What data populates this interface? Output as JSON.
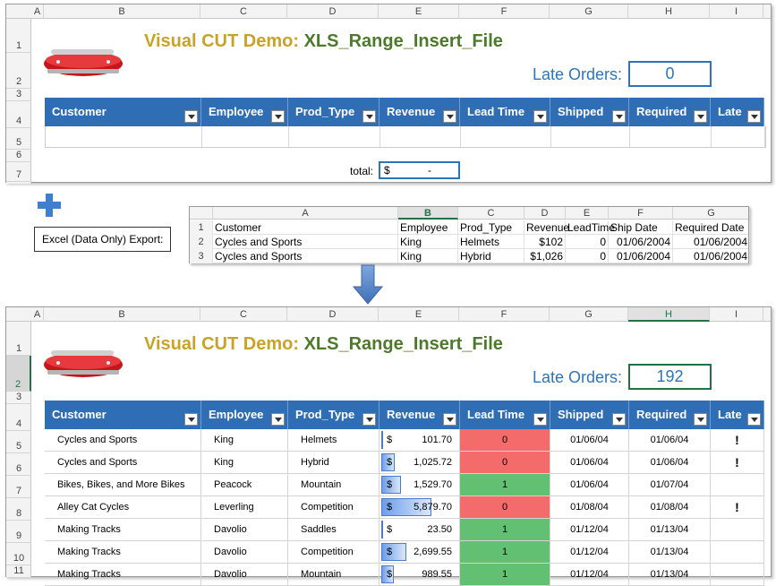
{
  "top_sheet": {
    "columns": [
      "A",
      "B",
      "C",
      "D",
      "E",
      "F",
      "G",
      "H",
      "I"
    ],
    "rows": [
      "1",
      "2",
      "3",
      "4",
      "5",
      "6",
      "7"
    ],
    "title_part1": "Visual CUT Demo:",
    "title_part2": "XLS_Range_Insert_File",
    "late_orders_label": "Late Orders:",
    "late_orders_value": "0",
    "headers": [
      "Customer",
      "Employee",
      "Prod_Type",
      "Revenue",
      "Lead Time",
      "Shipped",
      "Required",
      "Late"
    ],
    "total_label": "total:",
    "total_currency": "$",
    "total_value": "-"
  },
  "export_label": "Excel (Data Only) Export:",
  "export_sheet": {
    "columns": [
      "A",
      "B",
      "C",
      "D",
      "E",
      "F",
      "G"
    ],
    "header_row": {
      "n": "1",
      "cells": [
        "Customer",
        "Employee",
        "Prod_Type",
        "Revenue",
        "LeadTime",
        "Ship Date",
        "Required Date"
      ]
    },
    "rows": [
      {
        "n": "2",
        "cells": [
          "Cycles and Sports",
          "King",
          "Helmets",
          "$102",
          "0",
          "01/06/2004",
          "01/06/2004"
        ]
      },
      {
        "n": "3",
        "cells": [
          "Cycles and Sports",
          "King",
          "Hybrid",
          "$1,026",
          "0",
          "01/06/2004",
          "01/06/2004"
        ]
      }
    ]
  },
  "bottom_sheet": {
    "columns": [
      "A",
      "B",
      "C",
      "D",
      "E",
      "F",
      "G",
      "H",
      "I"
    ],
    "rows": [
      "1",
      "2",
      "3",
      "4",
      "5",
      "6",
      "7",
      "8",
      "9",
      "10",
      "11"
    ],
    "title_part1": "Visual CUT Demo:",
    "title_part2": "XLS_Range_Insert_File",
    "late_orders_label": "Late Orders:",
    "late_orders_value": "192",
    "headers": [
      "Customer",
      "Employee",
      "Prod_Type",
      "Revenue",
      "Lead Time",
      "Shipped",
      "Required",
      "Late"
    ],
    "data": [
      {
        "customer": "Cycles and Sports",
        "employee": "King",
        "prod_type": "Helmets",
        "currency": "$",
        "revenue": "101.70",
        "revenue_fraction": 0.02,
        "lead_time": "0",
        "status": "red",
        "shipped": "01/06/04",
        "required": "01/06/04",
        "late": "!"
      },
      {
        "customer": "Cycles and Sports",
        "employee": "King",
        "prod_type": "Hybrid",
        "currency": "$",
        "revenue": "1,025.72",
        "revenue_fraction": 0.17,
        "lead_time": "0",
        "status": "red",
        "shipped": "01/06/04",
        "required": "01/06/04",
        "late": "!"
      },
      {
        "customer": "Bikes, Bikes, and More Bikes",
        "employee": "Peacock",
        "prod_type": "Mountain",
        "currency": "$",
        "revenue": "1,529.70",
        "revenue_fraction": 0.26,
        "lead_time": "1",
        "status": "green",
        "shipped": "01/06/04",
        "required": "01/07/04",
        "late": ""
      },
      {
        "customer": "Alley Cat Cycles",
        "employee": "Leverling",
        "prod_type": "Competition",
        "currency": "$",
        "revenue": "5,879.70",
        "revenue_fraction": 0.65,
        "lead_time": "0",
        "status": "red",
        "shipped": "01/08/04",
        "required": "01/08/04",
        "late": "!"
      },
      {
        "customer": "Making Tracks",
        "employee": "Davolio",
        "prod_type": "Saddles",
        "currency": "$",
        "revenue": "23.50",
        "revenue_fraction": 0.01,
        "lead_time": "1",
        "status": "green",
        "shipped": "01/12/04",
        "required": "01/13/04",
        "late": ""
      },
      {
        "customer": "Making Tracks",
        "employee": "Davolio",
        "prod_type": "Competition",
        "currency": "$",
        "revenue": "2,699.55",
        "revenue_fraction": 0.33,
        "lead_time": "1",
        "status": "green",
        "shipped": "01/12/04",
        "required": "01/13/04",
        "late": ""
      },
      {
        "customer": "Making Tracks",
        "employee": "Davolio",
        "prod_type": "Mountain",
        "currency": "$",
        "revenue": "989.55",
        "revenue_fraction": 0.16,
        "lead_time": "1",
        "status": "green",
        "shipped": "01/12/04",
        "required": "01/13/04",
        "late": ""
      }
    ]
  },
  "colors": {
    "header_blue": "#2f6eb5",
    "late_red": "#f46b6b",
    "ontime_green": "#62c073",
    "title_gold": "#c9a227",
    "title_green": "#4d7a2a"
  },
  "icons": {
    "logo": "swiss-army-knife-icon",
    "plus": "plus-icon",
    "arrow": "arrow-down-icon",
    "filter": "filter-dropdown-icon"
  }
}
